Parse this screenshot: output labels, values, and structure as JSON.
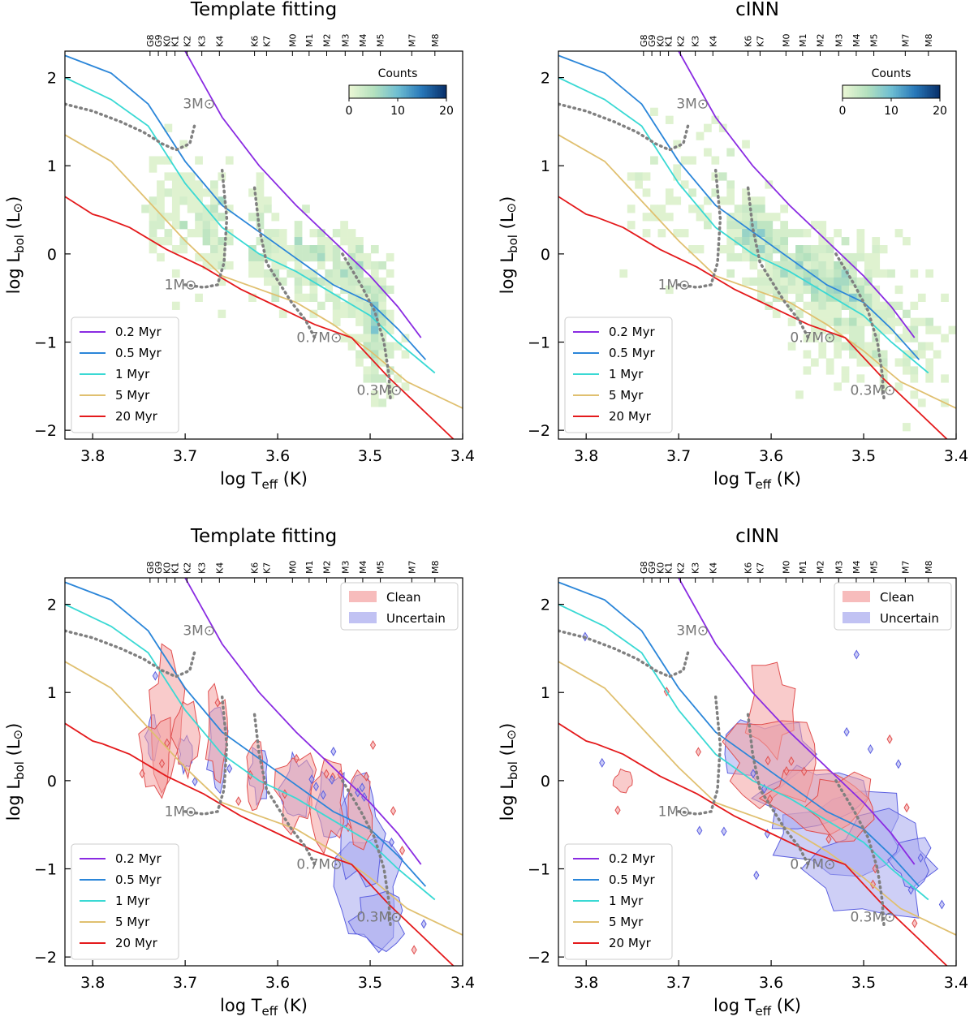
{
  "chart_data": [
    {
      "type": "heatmap",
      "panel": "top-left",
      "title": "Template fitting",
      "xlabel": "log T_eff (K)",
      "ylabel": "log L_bol (L_sun)",
      "xlim": [
        3.83,
        3.4
      ],
      "ylim": [
        -2.1,
        2.3
      ],
      "xticks": [
        "3.8",
        "3.7",
        "3.6",
        "3.5",
        "3.4"
      ],
      "yticks": [
        "−2",
        "−1",
        "0",
        "1",
        "2"
      ],
      "colorbar": {
        "label": "Counts",
        "ticks": [
          "0",
          "10",
          "20"
        ],
        "range": [
          0,
          20
        ]
      },
      "legend_position": "lower-left",
      "mass_labels": [
        "3M⊙",
        "1M⊙",
        "0.7M⊙",
        "0.3M⊙"
      ],
      "density_clusters": [
        {
          "x": 3.5,
          "y": -0.6,
          "count": 17
        },
        {
          "x": 3.55,
          "y": -0.2,
          "count": 12
        },
        {
          "x": 3.66,
          "y": 0.4,
          "count": 11
        },
        {
          "x": 3.6,
          "y": 0.0,
          "count": 9
        },
        {
          "x": 3.73,
          "y": 0.5,
          "count": 5
        },
        {
          "x": 3.62,
          "y": 0.1,
          "count": 8
        }
      ]
    },
    {
      "type": "heatmap",
      "panel": "top-right",
      "title": "cINN",
      "xlabel": "log T_eff (K)",
      "ylabel": "log L_bol (L_sun)",
      "xlim": [
        3.83,
        3.4
      ],
      "ylim": [
        -2.1,
        2.3
      ],
      "xticks": [
        "3.8",
        "3.7",
        "3.6",
        "3.5",
        "3.4"
      ],
      "yticks": [
        "−2",
        "−1",
        "0",
        "1",
        "2"
      ],
      "colorbar": {
        "label": "Counts",
        "ticks": [
          "0",
          "10",
          "20"
        ],
        "range": [
          0,
          20
        ]
      },
      "legend_position": "lower-left",
      "mass_labels": [
        "3M⊙",
        "1M⊙",
        "0.7M⊙",
        "0.3M⊙"
      ],
      "density_clusters": [
        {
          "x": 3.53,
          "y": -0.4,
          "count": 14
        },
        {
          "x": 3.62,
          "y": 0.3,
          "count": 10
        },
        {
          "x": 3.57,
          "y": -0.1,
          "count": 8
        },
        {
          "x": 3.5,
          "y": -0.8,
          "count": 5
        }
      ]
    },
    {
      "type": "contour",
      "panel": "bottom-left",
      "title": "Template fitting",
      "xlabel": "log T_eff (K)",
      "ylabel": "log L_bol (L_sun)",
      "xlim": [
        3.83,
        3.4
      ],
      "ylim": [
        -2.1,
        2.3
      ],
      "xticks": [
        "3.8",
        "3.7",
        "3.6",
        "3.5",
        "3.4"
      ],
      "yticks": [
        "−2",
        "−1",
        "0",
        "1",
        "2"
      ],
      "sample_legend": [
        {
          "name": "Clean",
          "color": "#f4a0a0"
        },
        {
          "name": "Uncertain",
          "color": "#a6a8ee"
        }
      ],
      "legend_position": "upper-right / lower-left",
      "mass_labels": [
        "3M⊙",
        "1M⊙",
        "0.7M⊙",
        "0.3M⊙"
      ]
    },
    {
      "type": "contour",
      "panel": "bottom-right",
      "title": "cINN",
      "xlabel": "log T_eff (K)",
      "ylabel": "log L_bol (L_sun)",
      "xlim": [
        3.83,
        3.4
      ],
      "ylim": [
        -2.1,
        2.3
      ],
      "xticks": [
        "3.8",
        "3.7",
        "3.6",
        "3.5",
        "3.4"
      ],
      "yticks": [
        "−2",
        "−1",
        "0",
        "1",
        "2"
      ],
      "sample_legend": [
        {
          "name": "Clean",
          "color": "#f4a0a0"
        },
        {
          "name": "Uncertain",
          "color": "#a6a8ee"
        }
      ],
      "legend_position": "upper-right / lower-left",
      "mass_labels": [
        "3M⊙",
        "1M⊙",
        "0.7M⊙",
        "0.3M⊙"
      ]
    }
  ],
  "spectral_types": [
    {
      "label": "G8",
      "logT": 3.738
    },
    {
      "label": "G9",
      "logT": 3.729
    },
    {
      "label": "K0",
      "logT": 3.72
    },
    {
      "label": "K1",
      "logT": 3.711
    },
    {
      "label": "K2",
      "logT": 3.698
    },
    {
      "label": "K3",
      "logT": 3.682
    },
    {
      "label": "K4",
      "logT": 3.663
    },
    {
      "label": "K6",
      "logT": 3.625
    },
    {
      "label": "K7",
      "logT": 3.612
    },
    {
      "label": "M0",
      "logT": 3.584
    },
    {
      "label": "M1",
      "logT": 3.566
    },
    {
      "label": "M2",
      "logT": 3.547
    },
    {
      "label": "M3",
      "logT": 3.527
    },
    {
      "label": "M4",
      "logT": 3.508
    },
    {
      "label": "M5",
      "logT": 3.489
    },
    {
      "label": "M7",
      "logT": 3.455
    },
    {
      "label": "M8",
      "logT": 3.43
    }
  ],
  "isochrones": [
    {
      "name": "0.2 Myr",
      "color": "#8a2be2",
      "x": [
        3.7,
        3.66,
        3.62,
        3.58,
        3.54,
        3.5,
        3.47,
        3.445
      ],
      "y": [
        2.3,
        1.55,
        1.0,
        0.55,
        0.15,
        -0.25,
        -0.6,
        -0.95
      ]
    },
    {
      "name": "0.5 Myr",
      "color": "#2b86d9",
      "x": [
        3.83,
        3.78,
        3.74,
        3.7,
        3.66,
        3.62,
        3.58,
        3.54,
        3.5,
        3.47,
        3.44
      ],
      "y": [
        2.25,
        2.05,
        1.7,
        1.05,
        0.55,
        0.25,
        -0.05,
        -0.35,
        -0.55,
        -0.85,
        -1.2
      ]
    },
    {
      "name": "1 Myr",
      "color": "#3ad9d4",
      "x": [
        3.83,
        3.78,
        3.74,
        3.7,
        3.66,
        3.62,
        3.58,
        3.54,
        3.5,
        3.47,
        3.43
      ],
      "y": [
        2.0,
        1.75,
        1.45,
        0.8,
        0.3,
        0.0,
        -0.2,
        -0.45,
        -0.7,
        -1.0,
        -1.35
      ]
    },
    {
      "name": "5 Myr",
      "color": "#e0c070",
      "x": [
        3.83,
        3.78,
        3.74,
        3.7,
        3.66,
        3.62,
        3.58,
        3.54,
        3.5,
        3.46,
        3.4
      ],
      "y": [
        1.35,
        1.05,
        0.6,
        0.15,
        -0.25,
        -0.4,
        -0.55,
        -0.8,
        -1.1,
        -1.45,
        -1.75
      ]
    },
    {
      "name": "20 Myr",
      "color": "#e41a1c",
      "x": [
        3.83,
        3.8,
        3.79,
        3.76,
        3.72,
        3.68,
        3.64,
        3.6,
        3.56,
        3.52,
        3.48,
        3.44,
        3.4
      ],
      "y": [
        0.65,
        0.45,
        0.42,
        0.3,
        0.05,
        -0.15,
        -0.4,
        -0.6,
        -0.8,
        -0.95,
        -1.4,
        -1.8,
        -2.2
      ]
    }
  ],
  "mass_tracks": [
    {
      "label": "3M⊙",
      "x": [
        3.83,
        3.8,
        3.77,
        3.745,
        3.725,
        3.71,
        3.695,
        3.69
      ],
      "y": [
        1.7,
        1.62,
        1.5,
        1.38,
        1.25,
        1.18,
        1.25,
        1.45
      ]
    },
    {
      "label": "1M⊙",
      "x": [
        3.7,
        3.68,
        3.665,
        3.658,
        3.655,
        3.66
      ],
      "y": [
        -0.35,
        -0.38,
        -0.35,
        -0.1,
        0.4,
        0.95
      ]
    },
    {
      "label": "0.7M⊙",
      "x": [
        3.625,
        3.62,
        3.612,
        3.6,
        3.585,
        3.57,
        3.56
      ],
      "y": [
        0.75,
        0.3,
        -0.1,
        -0.3,
        -0.55,
        -0.75,
        -0.95
      ]
    },
    {
      "label": "0.3M⊙",
      "x": [
        3.53,
        3.51,
        3.495,
        3.485,
        3.48,
        3.478
      ],
      "y": [
        0.0,
        -0.35,
        -0.65,
        -1.0,
        -1.35,
        -1.65
      ]
    }
  ]
}
